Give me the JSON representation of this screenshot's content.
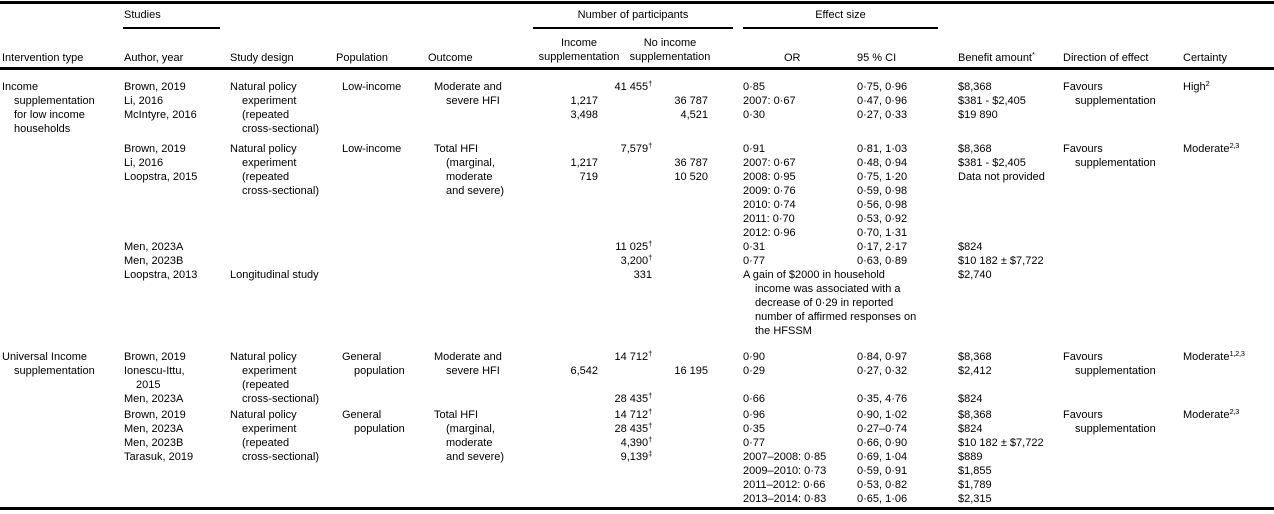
{
  "table": {
    "group_headers": {
      "studies": "Studies",
      "participants": "Number of participants",
      "effect_size": "Effect size"
    },
    "columns": {
      "intervention": "Intervention type",
      "author": "Author, year",
      "design": "Study design",
      "population": "Population",
      "outcome": "Outcome",
      "income_supp": "Income supplementation",
      "no_income_supp": "No income supplementation",
      "or": "OR",
      "ci": "95 % CI",
      "benefit": "Benefit amount",
      "benefit_marker": "*",
      "direction": "Direction of effect",
      "certainty": "Certainty"
    },
    "blocks": [
      {
        "intervention": [
          "Income",
          {
            "t": "supplementation",
            "c": 1
          },
          {
            "t": "for low income",
            "c": 1
          },
          {
            "t": "households",
            "c": 1
          }
        ],
        "authors": [
          "Brown, 2019",
          "Li, 2016",
          "McIntyre, 2016"
        ],
        "design": [
          "Natural policy",
          {
            "t": "experiment",
            "c": 1
          },
          {
            "t": "(repeated",
            "c": 1
          },
          {
            "t": "cross-sectional)",
            "c": 1
          }
        ],
        "population": [
          "Low-income"
        ],
        "outcome": [
          "Moderate and",
          {
            "t": "severe HFI",
            "c": 1
          }
        ],
        "participants": [
          {
            "total": "41 455",
            "tm": "†"
          },
          {
            "income": "1,217",
            "noincome": "36 787"
          },
          {
            "income": "3,498",
            "noincome": "4,521"
          }
        ],
        "or": [
          "0·85",
          "2007: 0·67",
          "0·30"
        ],
        "ci": [
          "0·75, 0·96",
          "0·47, 0·96",
          "0·27, 0·33"
        ],
        "benefit": [
          "$8,368",
          "$381 - $2,405",
          "$19 890"
        ],
        "direction": [
          "Favours",
          {
            "t": "supplementation",
            "c": 1
          }
        ],
        "certainty": {
          "t": "High",
          "sup": "2"
        }
      },
      {
        "intervention": [],
        "authors": [
          "Brown, 2019",
          "Li, 2016",
          "Loopstra, 2015"
        ],
        "design": [
          "Natural policy",
          {
            "t": "experiment",
            "c": 1
          },
          {
            "t": "(repeated",
            "c": 1
          },
          {
            "t": "cross-sectional)",
            "c": 1
          }
        ],
        "population": [
          "Low-income"
        ],
        "outcome": [
          "Total HFI",
          {
            "t": "(marginal,",
            "c": 1
          },
          {
            "t": "moderate",
            "c": 1
          },
          {
            "t": "and severe)",
            "c": 1
          }
        ],
        "participants": [
          {
            "total": "7,579",
            "tm": "†"
          },
          {
            "income": "1,217",
            "noincome": "36 787"
          },
          {
            "income": "719",
            "noincome": "10 520"
          }
        ],
        "or": [
          "0·91",
          "2007: 0·67",
          "2008: 0·95",
          "2009: 0·76",
          "2010: 0·74",
          "2011: 0·70",
          "2012: 0·96"
        ],
        "ci": [
          "0·81, 1·03",
          "0·48, 0·94",
          "0·75, 1·20",
          "0·59, 0·98",
          "0·56, 0·98",
          "0·53, 0·92",
          "0·70, 1·31"
        ],
        "benefit": [
          "$8,368",
          "$381 - $2,405",
          "Data not provided"
        ],
        "direction": [
          "Favours",
          {
            "t": "supplementation",
            "c": 1
          }
        ],
        "certainty": {
          "t": "Moderate",
          "sup": "2,3"
        }
      },
      {
        "intervention": [],
        "authors": [
          "Men, 2023A",
          "Men, 2023B",
          "Loopstra, 2013"
        ],
        "design": [
          "",
          "",
          "Longitudinal study"
        ],
        "population": [],
        "outcome": [],
        "participants": [
          {
            "total": "11 025",
            "tm": "†"
          },
          {
            "total": "3,200",
            "tm": "†"
          },
          {
            "total": "331"
          }
        ],
        "or": [
          "0·31",
          "0·77"
        ],
        "ci": [
          "0·17, 2·17",
          "0·63, 0·89"
        ],
        "note": [
          "A gain of $2000 in household",
          {
            "t": "income was associated with a",
            "c": 1
          },
          {
            "t": "decrease of 0·29 in reported",
            "c": 1
          },
          {
            "t": "number of affirmed responses on",
            "c": 1
          },
          {
            "t": "the HFSSM",
            "c": 1
          }
        ],
        "benefit": [
          "$824",
          "$10 182 ± $7,722",
          "$2,740"
        ],
        "direction": [],
        "certainty": null
      },
      {
        "intervention": [
          "Universal Income",
          {
            "t": "supplementation",
            "c": 1
          }
        ],
        "authors": [
          "Brown, 2019",
          "Ionescu-Ittu,",
          {
            "t": "2015",
            "c": 1
          },
          "Men, 2023A"
        ],
        "design": [
          "Natural policy",
          {
            "t": "experiment",
            "c": 1
          },
          {
            "t": "(repeated",
            "c": 1
          },
          {
            "t": "cross-sectional)",
            "c": 1
          }
        ],
        "population": [
          "General",
          {
            "t": "population",
            "c": 1
          }
        ],
        "outcome": [
          "Moderate and",
          {
            "t": "severe HFI",
            "c": 1
          }
        ],
        "participants": [
          {
            "total": "14 712",
            "tm": "†"
          },
          {
            "income": "6,542",
            "noincome": "16 195"
          },
          {},
          {
            "total": "28 435",
            "tm": "†"
          }
        ],
        "or": [
          "0·90",
          "0·29",
          "",
          "0·66"
        ],
        "ci": [
          "0·84, 0·97",
          "0·27, 0·32",
          "",
          "0·35, 4·76"
        ],
        "benefit": [
          "$8,368",
          "$2,412",
          "",
          "$824"
        ],
        "direction": [
          "Favours",
          {
            "t": "supplementation",
            "c": 1
          }
        ],
        "certainty": {
          "t": "Moderate",
          "sup": "1,2,3"
        }
      },
      {
        "intervention": [],
        "authors": [
          "Brown, 2019",
          "Men, 2023A",
          "Men, 2023B",
          "Tarasuk, 2019"
        ],
        "design": [
          "Natural policy",
          {
            "t": "experiment",
            "c": 1
          },
          {
            "t": "(repeated",
            "c": 1
          },
          {
            "t": "cross-sectional)",
            "c": 1
          }
        ],
        "population": [
          "General",
          {
            "t": "population",
            "c": 1
          }
        ],
        "outcome": [
          "Total HFI",
          {
            "t": "(marginal,",
            "c": 1
          },
          {
            "t": "moderate",
            "c": 1
          },
          {
            "t": "and severe)",
            "c": 1
          }
        ],
        "participants": [
          {
            "total": "14 712",
            "tm": "†"
          },
          {
            "total": "28 435",
            "tm": "†"
          },
          {
            "total": "4,390",
            "tm": "†"
          },
          {
            "total": "9,139",
            "tm": "‡"
          }
        ],
        "or": [
          "0·96",
          "0·35",
          "0·77",
          "2007–2008: 0·85",
          "2009–2010: 0·73",
          "2011–2012: 0·66",
          "2013–2014: 0·83"
        ],
        "ci": [
          "0·90, 1·02",
          "0·27–0·74",
          "0·66, 0·90",
          "0·69, 1·04",
          "0·59, 0·91",
          "0·53, 0·82",
          "0·65, 1·06"
        ],
        "benefit": [
          "$8,368",
          "$824",
          "$10 182 ± $7,722",
          "$889",
          "$1,855",
          "$1,789",
          "$2,315"
        ],
        "direction": [
          "Favours",
          {
            "t": "supplementation",
            "c": 1
          }
        ],
        "certainty": {
          "t": "Moderate",
          "sup": "2,3"
        }
      }
    ]
  }
}
